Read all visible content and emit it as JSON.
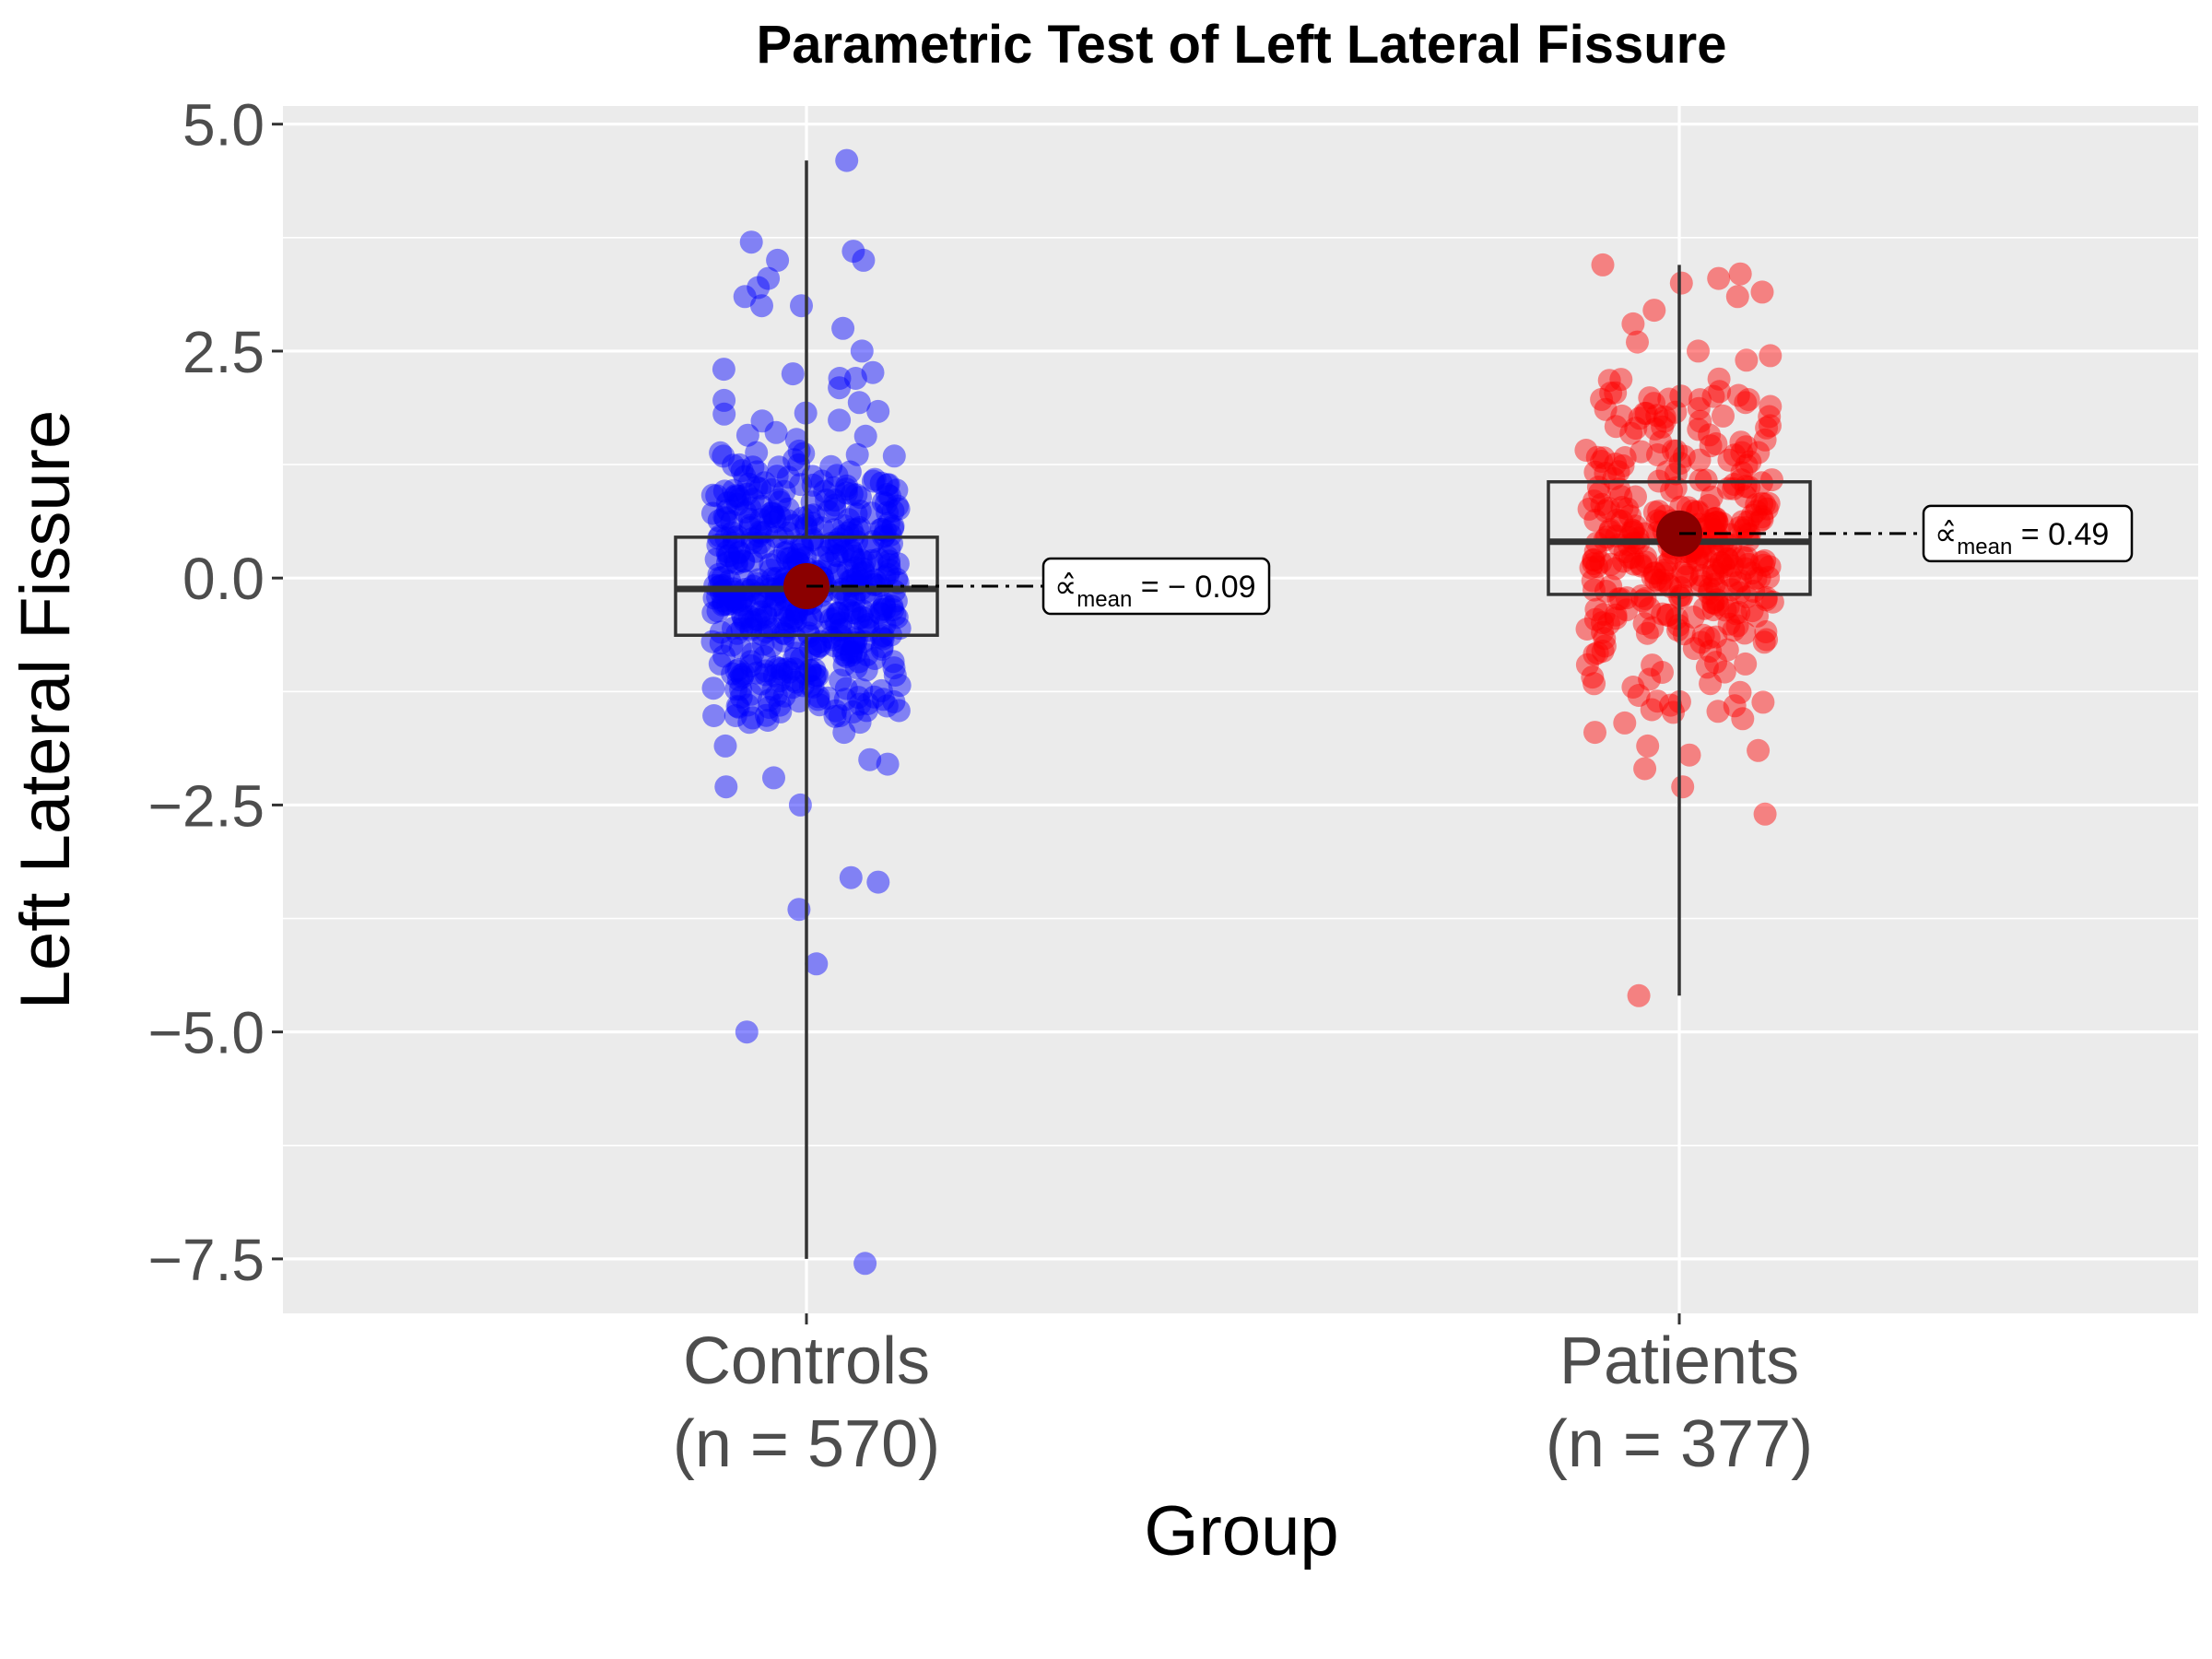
{
  "chart_data": {
    "type": "box",
    "title": "Parametric Test of Left Lateral Fissure",
    "xlabel": "Group",
    "ylabel": "Left Lateral Fissure",
    "ylim": [
      -8.1,
      5.2
    ],
    "yticks": [
      -7.5,
      -5.0,
      -2.5,
      0.0,
      2.5,
      5.0
    ],
    "ytick_labels": [
      "−7.5",
      "−5.0",
      "−2.5",
      "0.0",
      "2.5",
      "5.0"
    ],
    "grid": true,
    "colors": {
      "panel": "#ebebeb",
      "grid": "#ffffff",
      "mean_point": "#8b0000",
      "box_line": "#333333"
    },
    "groups": [
      {
        "name": "Controls",
        "n_label": "(n = 570)",
        "n": 570,
        "color": "#0000ff",
        "box": {
          "whisker_low": -7.5,
          "q1": -0.63,
          "median": -0.12,
          "q3": 0.45,
          "whisker_high": 4.6
        },
        "mean": -0.09,
        "mean_label": "− 0.09",
        "outliers": [
          4.6,
          3.7,
          3.6,
          3.5,
          3.5,
          3.3,
          3.2,
          3.1,
          3.0,
          3.0,
          2.75,
          2.5,
          2.3,
          2.25,
          2.2,
          2.2,
          -1.7,
          -1.85,
          -2.0,
          -2.05,
          -2.2,
          -2.3,
          -2.5,
          -3.3,
          -3.35,
          -3.65,
          -4.25,
          -5.0,
          -7.55
        ]
      },
      {
        "name": "Patients",
        "n_label": "(n = 377)",
        "n": 377,
        "color": "#ff0000",
        "box": {
          "whisker_low": -4.6,
          "q1": -0.18,
          "median": 0.4,
          "q3": 1.06,
          "whisker_high": 3.45
        },
        "mean": 0.49,
        "mean_label": "0.49",
        "outliers": [
          3.45,
          3.35,
          3.3,
          3.25,
          3.15,
          3.1,
          2.95,
          2.8,
          2.6,
          2.5,
          2.45,
          2.4,
          -1.4,
          -1.45,
          -1.55,
          -1.7,
          -1.85,
          -1.9,
          -1.95,
          -2.1,
          -2.3,
          -2.6,
          -4.6
        ]
      }
    ],
    "annotation": {
      "symbol": "∝̂",
      "subscript": "mean"
    }
  }
}
